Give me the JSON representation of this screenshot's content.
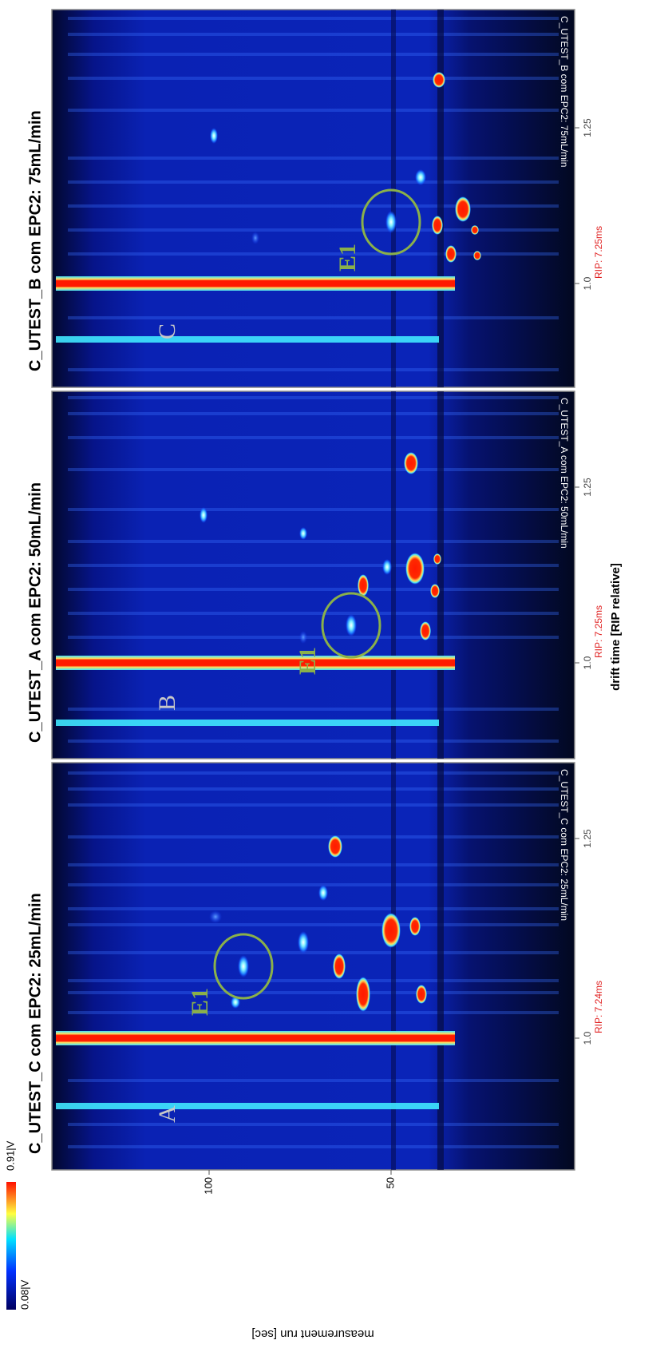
{
  "colorbar": {
    "min_label": "0.08|V",
    "max_label": "0.91|V"
  },
  "y_axis": {
    "label": "measurement run [sec]",
    "ticks": [
      "100",
      "50"
    ]
  },
  "x_axis": {
    "label": "drift time [RIP relative]"
  },
  "panels": [
    {
      "letter": "A",
      "title": "C_UTEST_C com EPC2: 25mL/min",
      "peak_label": "E1",
      "rip_label": "RIP: 7.24ms",
      "footer": "C_UTEST_C com EPC2: 25mL/min",
      "x_ticks": [
        "1.0",
        "1.25"
      ]
    },
    {
      "letter": "B",
      "title": "C_UTEST_A com EPC2: 50mL/min",
      "peak_label": "E1",
      "rip_label": "RIP: 7.25ms",
      "footer": "C_UTEST_A com EPC2: 50mL/min",
      "x_ticks": [
        "1.0",
        "1.25"
      ]
    },
    {
      "letter": "C",
      "title": "C_UTEST_B com EPC2: 75mL/min",
      "peak_label": "E1",
      "rip_label": "RIP: 7.25ms",
      "footer": "C_UTEST_B com EPC2: 75mL/min",
      "x_ticks": [
        "1.0",
        "1.25"
      ]
    }
  ]
}
